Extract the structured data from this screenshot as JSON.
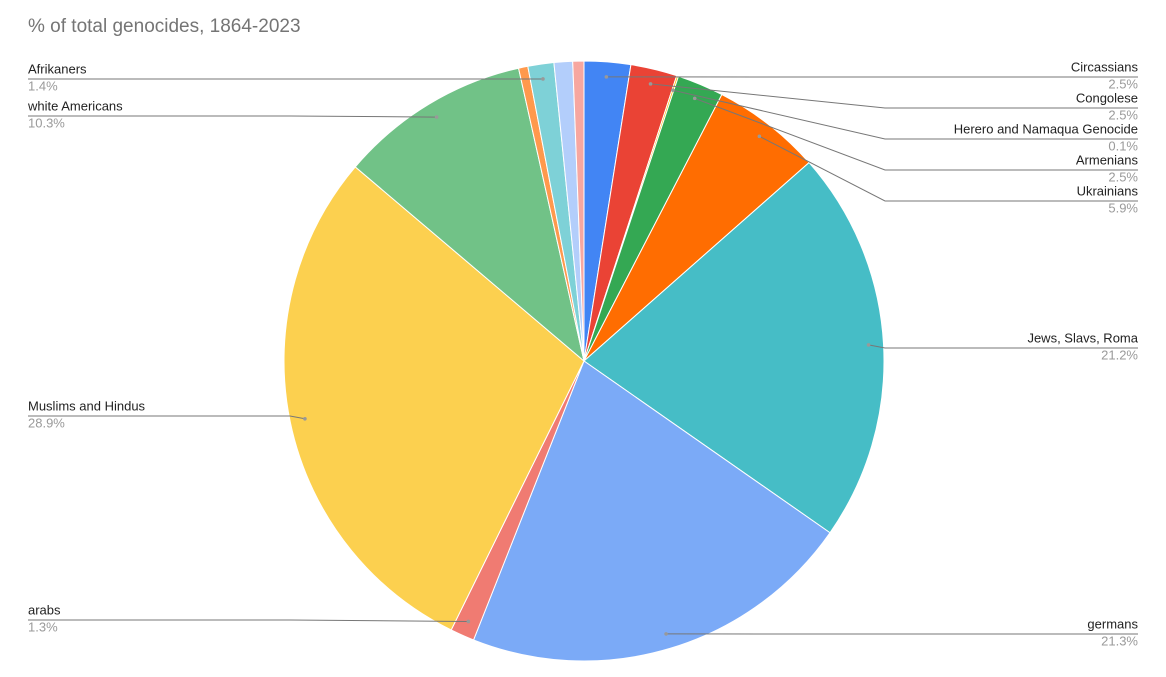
{
  "chart_data": {
    "type": "pie",
    "title": "% of total genocides, 1864-2023",
    "categories": [
      "Circassians",
      "Congolese",
      "Herero and Namaqua Genocide",
      "Armenians",
      "Ukrainians",
      "Jews, Slavs, Roma",
      "germans",
      "arabs",
      "Muslims and Hindus",
      "white Americans",
      null,
      "Afrikaners",
      null,
      null
    ],
    "values": [
      2.5,
      2.5,
      0.1,
      2.5,
      5.9,
      21.2,
      21.3,
      1.3,
      28.9,
      10.3,
      0.5,
      1.4,
      1.0,
      0.6
    ],
    "value_labels": [
      "2.5%",
      "2.5%",
      "0.1%",
      "2.5%",
      "5.9%",
      "21.2%",
      "21.3%",
      "1.3%",
      "28.9%",
      "10.3%",
      null,
      "1.4%",
      null,
      null
    ],
    "colors": [
      "#4285f4",
      "#ea4335",
      "#fbbc04",
      "#34a853",
      "#ff6d01",
      "#46bdc6",
      "#7baaf7",
      "#f07b72",
      "#fcd04f",
      "#71c287",
      "#ff994d",
      "#7ed1d7",
      "#b3cefb",
      "#f7a7a0"
    ]
  }
}
